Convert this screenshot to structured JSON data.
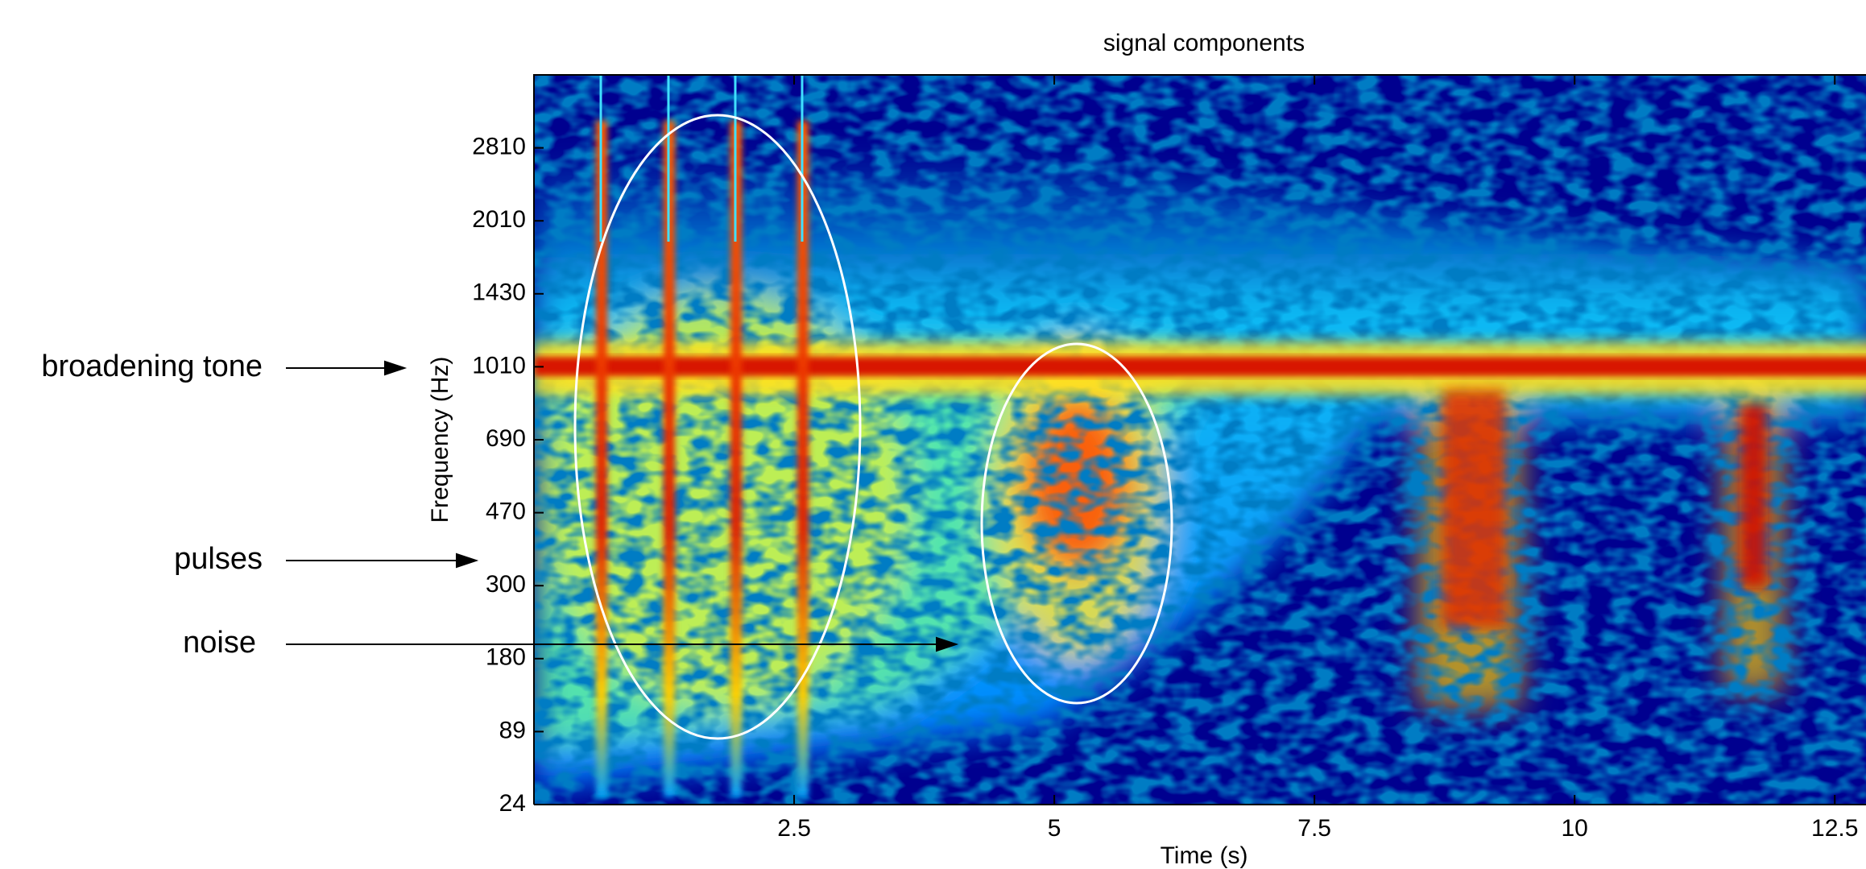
{
  "chart_data": {
    "type": "spectrogram",
    "title": "signal components",
    "xlabel": "Time (s)",
    "ylabel": "Frequency (Hz)",
    "xlim": [
      0,
      12.8
    ],
    "xticks": [
      2.5,
      5,
      7.5,
      10,
      12.5
    ],
    "yticks": [
      24,
      89,
      180,
      300,
      470,
      690,
      1010,
      1430,
      2010,
      2810
    ],
    "annotations": [
      "broadening tone",
      "pulses",
      "noise"
    ]
  }
}
